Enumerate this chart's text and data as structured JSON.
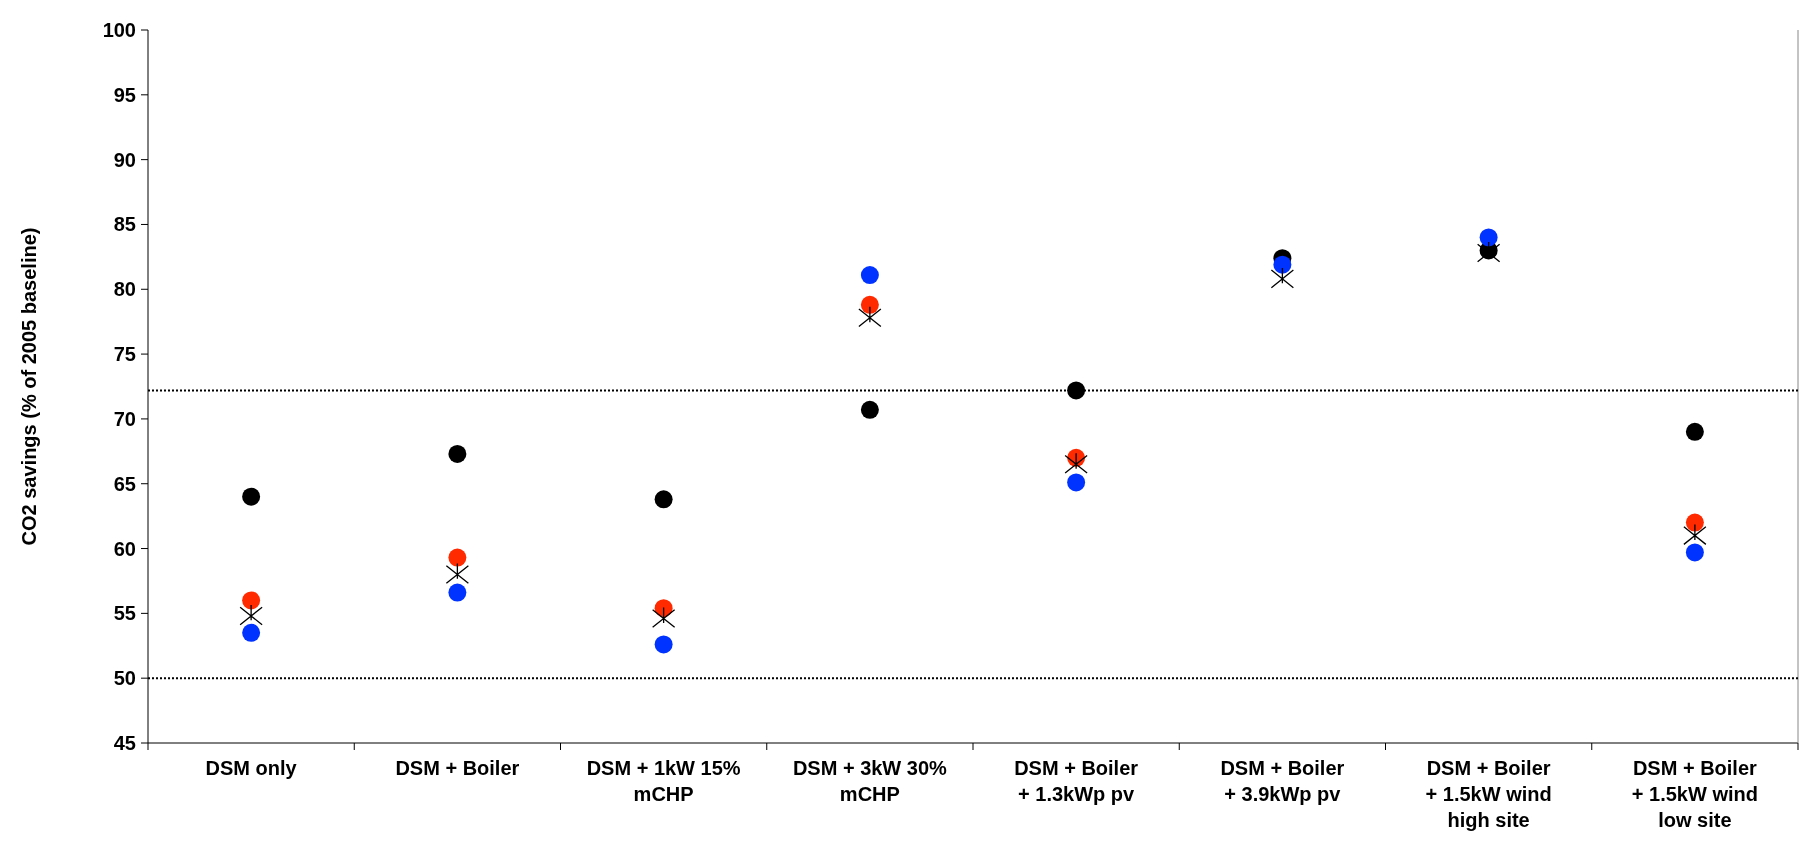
{
  "chart_data": {
    "type": "scatter",
    "ylabel": "CO2 savings (% of 2005 baseline)",
    "categories": [
      "DSM only",
      "DSM + Boiler",
      "DSM + 1kW 15% mCHP",
      "DSM + 3kW 30% mCHP",
      "DSM + Boiler + 1.3kWp pv",
      "DSM + Boiler + 3.9kWp pv",
      "DSM + Boiler + 1.5kW wind high site",
      "DSM + Boiler + 1.5kW wind low site"
    ],
    "series": [
      {
        "color": "#000000",
        "marker": "circle",
        "values": [
          64,
          67.3,
          63.8,
          70.7,
          72.2,
          82.4,
          83,
          69
        ]
      },
      {
        "color": "#ff2a00",
        "marker": "circle",
        "values": [
          56,
          59.3,
          55.4,
          78.8,
          67,
          null,
          null,
          62
        ]
      },
      {
        "color": "#0033ff",
        "marker": "circle",
        "values": [
          53.5,
          56.6,
          52.6,
          81.1,
          65.1,
          81.9,
          84,
          59.7
        ]
      },
      {
        "color": "#000000",
        "marker": "cross",
        "values": [
          54.8,
          58,
          54.6,
          77.8,
          66.5,
          80.8,
          82.8,
          61
        ]
      }
    ],
    "ylim": [
      45,
      100
    ],
    "yticks": [
      45,
      50,
      55,
      60,
      65,
      70,
      75,
      80,
      85,
      90,
      95,
      100
    ],
    "ref_lines": [
      {
        "axis": "y",
        "value": 72.2,
        "color": "#000000",
        "line_style": "dotted"
      },
      {
        "axis": "y",
        "value": 50,
        "color": "#000000",
        "line_style": "dotted"
      }
    ]
  }
}
